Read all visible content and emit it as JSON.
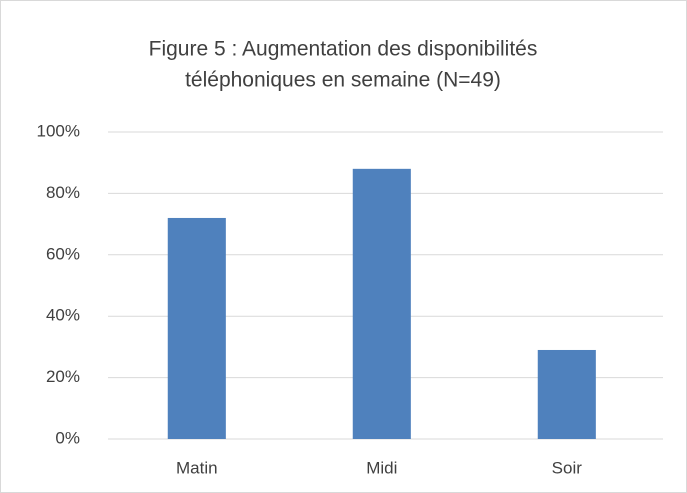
{
  "chart_data": {
    "type": "bar",
    "title": [
      "Figure 5 : Augmentation des disponibilités",
      "téléphoniques en semaine (N=49)"
    ],
    "categories": [
      "Matin",
      "Midi",
      "Soir"
    ],
    "values": [
      72,
      88,
      29
    ],
    "color": "#4f81bd",
    "ylim": [
      0,
      100
    ],
    "yticks": [
      {
        "value": 0,
        "label": "0%"
      },
      {
        "value": 20,
        "label": "20%"
      },
      {
        "value": 40,
        "label": "40%"
      },
      {
        "value": 60,
        "label": "60%"
      },
      {
        "value": 80,
        "label": "80%"
      },
      {
        "value": 100,
        "label": "100%"
      }
    ],
    "grid": true
  }
}
